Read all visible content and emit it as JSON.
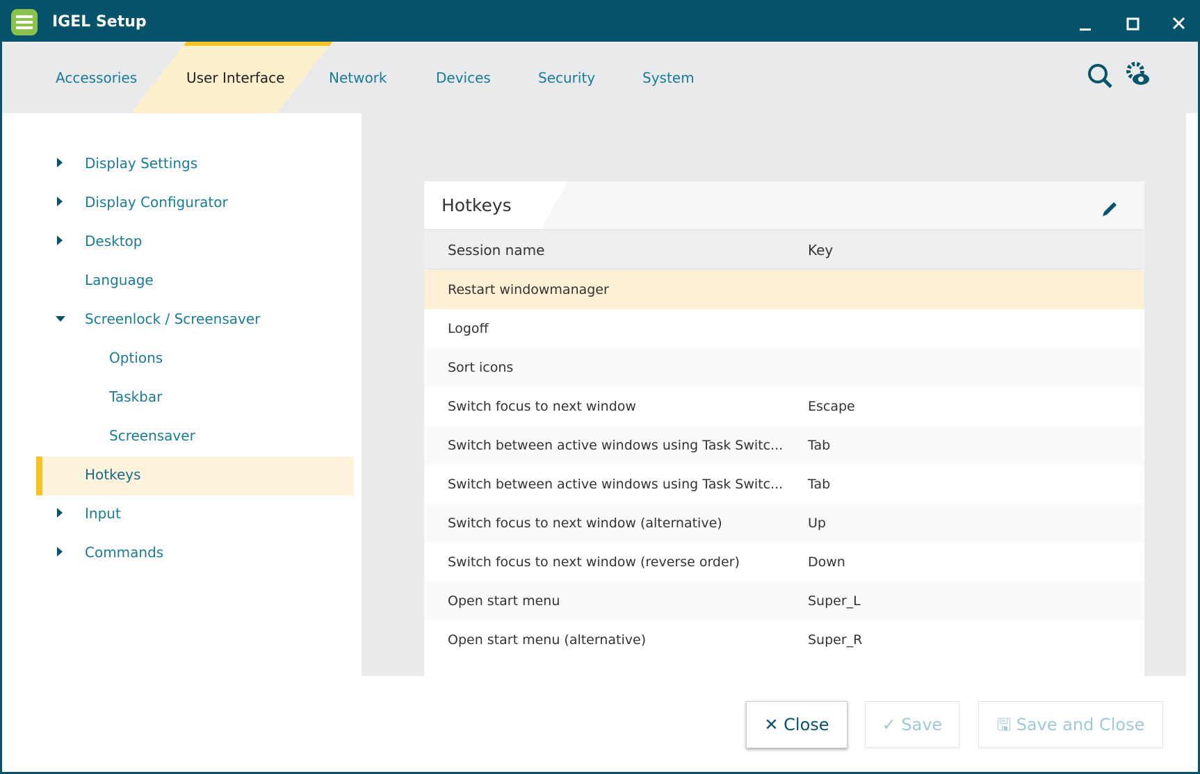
{
  "window": {
    "title": "IGEL Setup"
  },
  "tabs": [
    "Accessories",
    "User Interface",
    "Network",
    "Devices",
    "Security",
    "System"
  ],
  "tree": [
    "Display Settings",
    "Display Configurator",
    "Desktop",
    "Language",
    "Screenlock / Screensaver",
    "Options",
    "Taskbar",
    "Screensaver",
    "Hotkeys",
    "Input",
    "Commands"
  ],
  "panel": {
    "title": "Hotkeys",
    "columns": [
      "Session name",
      "Key"
    ],
    "rows": [
      {
        "name": "Restart windowmanager"
      },
      {
        "name": "Logoff"
      },
      {
        "name": "Sort icons"
      },
      {
        "name": "Switch focus to next window",
        "key": "Escape"
      },
      {
        "name": "Switch between active windows using Task Switc...",
        "key": "Tab"
      },
      {
        "name": "Switch between active windows using Task Switc...",
        "key": "Tab"
      },
      {
        "name": "Switch focus to next window (alternative)",
        "key": "Up"
      },
      {
        "name": "Switch focus to next window (reverse order)",
        "key": "Down"
      },
      {
        "name": "Open start menu",
        "key": "Super_L"
      },
      {
        "name": "Open start menu (alternative)",
        "key": "Super_R"
      }
    ]
  },
  "buttons": [
    "Close",
    "Save",
    "Save and Close"
  ]
}
